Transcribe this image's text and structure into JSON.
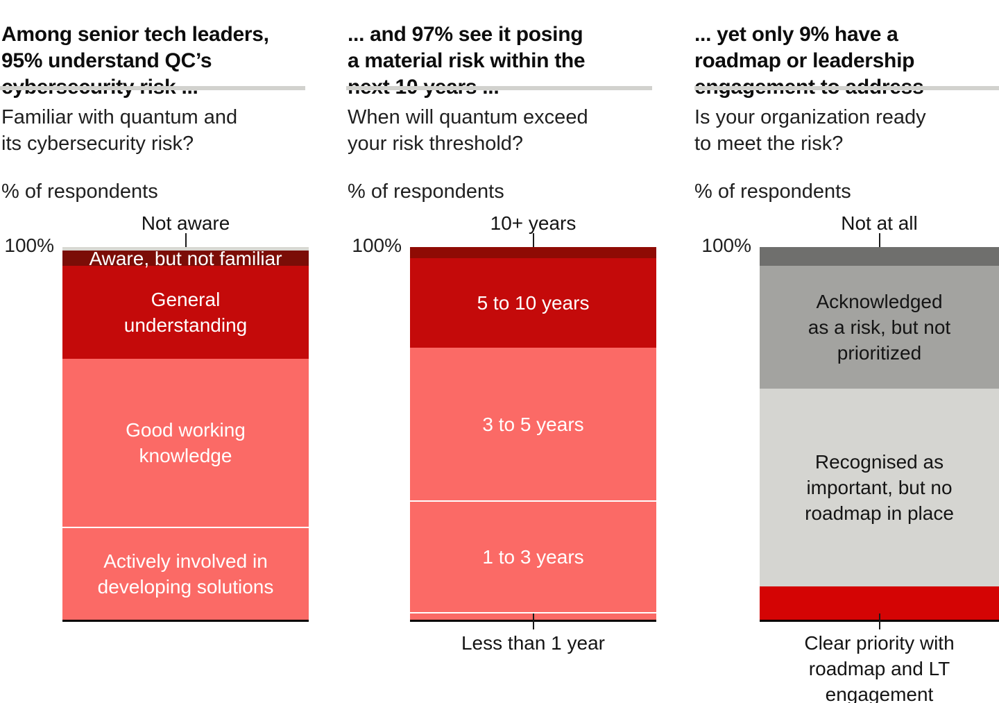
{
  "accent_colors": {
    "dark_maroon": "#7b0d07",
    "dark_red": "#c40a0a",
    "salmon_red": "#fb6a66",
    "bright_red": "#d40404",
    "light_gray": "#d8d8d3",
    "dark_gray": "#6f6f6d",
    "mid_gray": "#a3a3a0",
    "pale_gray": "#d5d5d1",
    "rule_gray": "#d2d2ce"
  },
  "panels": [
    {
      "title": "Among senior tech leaders,\n95% understand QC’s\ncybersecurity risk ...",
      "subtitle": "Familiar with quantum and\nits cybersecurity risk?",
      "unit": "% of respondents",
      "axis_top_label": "100%",
      "top_annotation": "Not aware",
      "bottom_annotation": ""
    },
    {
      "title": "... and 97% see it posing\na material risk within the\nnext 10 years ...",
      "subtitle": "When will quantum exceed\nyour risk threshold?",
      "unit": "% of respondents",
      "axis_top_label": "100%",
      "top_annotation": "10+ years",
      "bottom_annotation": "Less than 1 year"
    },
    {
      "title": "... yet only 9% have a\nroadmap or leadership\nengagement to address",
      "subtitle": "Is your organization ready\nto meet the risk?",
      "unit": "% of respondents",
      "axis_top_label": "100%",
      "top_annotation": "Not at all",
      "bottom_annotation": "Clear priority with\nroadmap and LT\nengagement"
    }
  ],
  "chart_data": [
    {
      "type": "bar",
      "stacked": true,
      "title": "Familiar with quantum and its cybersecurity risk?",
      "ylabel": "% of respondents",
      "ylim": [
        0,
        100
      ],
      "segments": [
        {
          "label": "Not aware",
          "value": 1,
          "color": "#d8d8d3",
          "label_position": "above",
          "text_color": "#141414"
        },
        {
          "label": "Aware, but not familiar",
          "value": 4,
          "color": "#7b0d07",
          "label_position": "inside-overflow",
          "text_color": "#ffffff"
        },
        {
          "label": "General\nunderstanding",
          "value": 25,
          "color": "#c40a0a",
          "label_position": "inside",
          "text_color": "#ffffff"
        },
        {
          "label": "Good working\nknowledge",
          "value": 45,
          "color": "#fb6a66",
          "label_position": "inside",
          "text_color": "#ffffff"
        },
        {
          "label": "Actively involved in\ndeveloping solutions",
          "value": 25,
          "color": "#fb6a66",
          "divider": true,
          "label_position": "inside",
          "text_color": "#ffffff"
        }
      ]
    },
    {
      "type": "bar",
      "stacked": true,
      "title": "When will quantum exceed your risk threshold?",
      "ylabel": "% of respondents",
      "ylim": [
        0,
        100
      ],
      "segments": [
        {
          "label": "10+ years",
          "value": 3,
          "color": "#8f0b04",
          "label_position": "above",
          "text_color": "#141414"
        },
        {
          "label": "5 to 10 years",
          "value": 24,
          "color": "#c40a0a",
          "label_position": "inside",
          "text_color": "#ffffff"
        },
        {
          "label": "3 to 5 years",
          "value": 41,
          "color": "#fb6a66",
          "label_position": "inside",
          "text_color": "#ffffff"
        },
        {
          "label": "1 to 3 years",
          "value": 30,
          "color": "#fb6a66",
          "divider": true,
          "label_position": "inside",
          "text_color": "#ffffff"
        },
        {
          "label": "Less than 1 year",
          "value": 2,
          "color": "#fb6a66",
          "divider": true,
          "label_position": "below",
          "text_color": "#141414"
        }
      ]
    },
    {
      "type": "bar",
      "stacked": true,
      "title": "Is your organization ready to meet the risk?",
      "ylabel": "% of respondents",
      "ylim": [
        0,
        100
      ],
      "segments": [
        {
          "label": "Not at all",
          "value": 5,
          "color": "#6f6f6d",
          "label_position": "above",
          "text_color": "#141414"
        },
        {
          "label": "Acknowledged\nas a risk, but not\nprioritized",
          "value": 33,
          "color": "#a3a3a0",
          "label_position": "inside",
          "text_color": "#141414"
        },
        {
          "label": "Recognised as\nimportant, but no\nroadmap in place",
          "value": 53,
          "color": "#d5d5d1",
          "label_position": "inside",
          "text_color": "#141414"
        },
        {
          "label": "Clear priority with roadmap and LT engagement",
          "value": 9,
          "color": "#d40404",
          "label_position": "below",
          "text_color": "#ffffff"
        }
      ]
    }
  ]
}
